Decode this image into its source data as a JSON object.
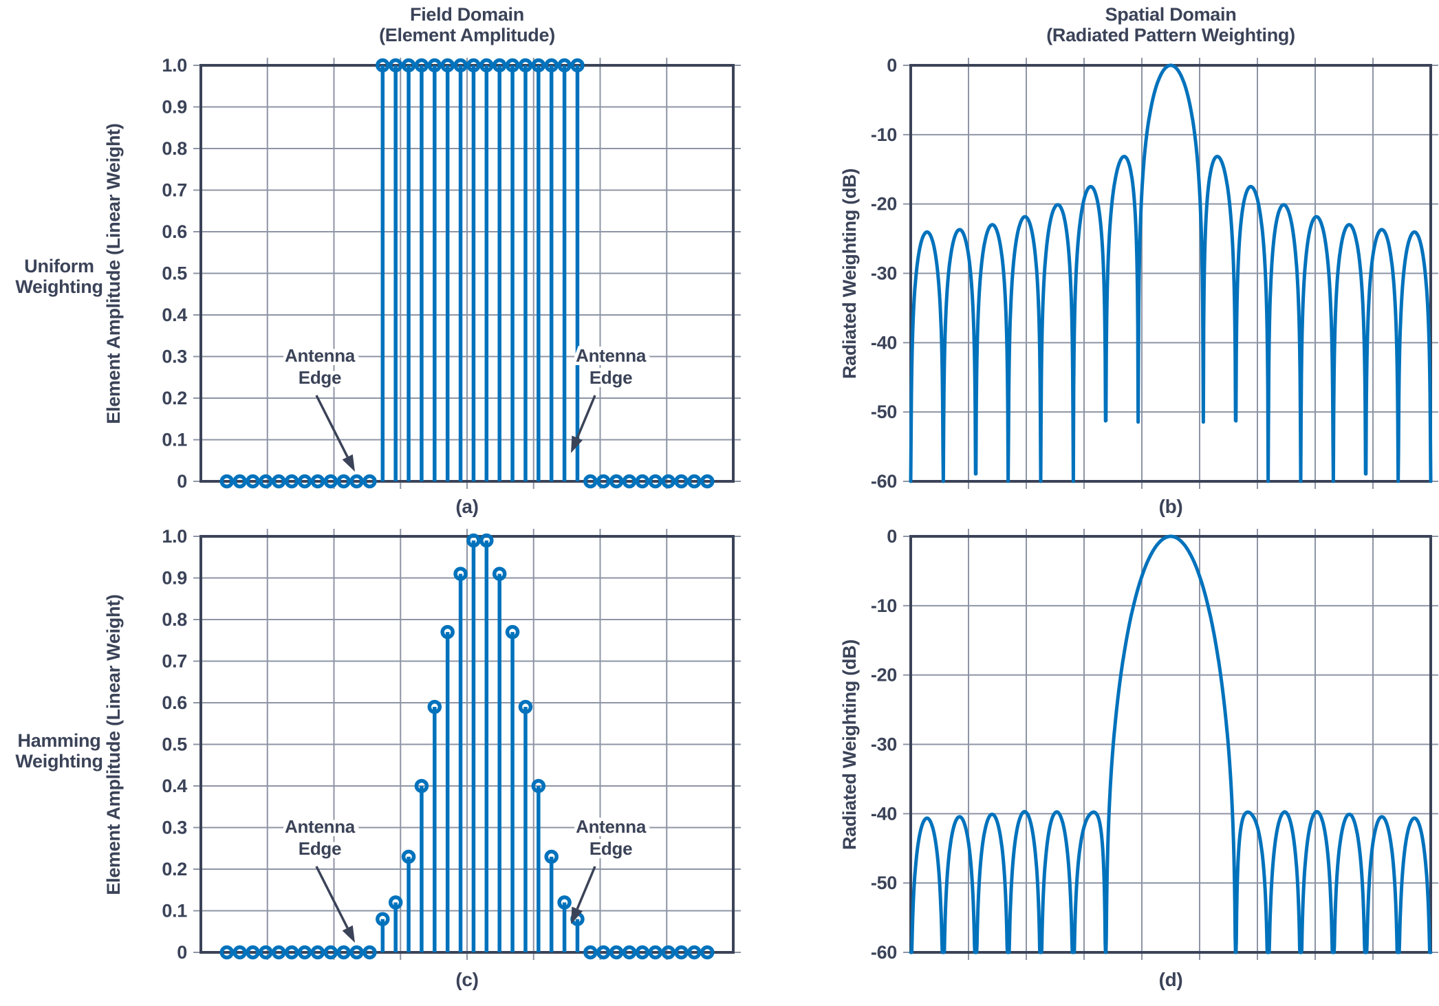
{
  "figure": {
    "bg": "#ffffff",
    "accent_blue": "#0072bc",
    "axis_color": "#3b4358",
    "grid_color": "#8d94a4",
    "row_labels": [
      {
        "line1": "Uniform",
        "line2": "Weighting"
      },
      {
        "line1": "Hamming",
        "line2": "Weighting"
      }
    ],
    "annotation": {
      "line1": "Antenna",
      "line2": "Edge"
    }
  },
  "chart_data": [
    {
      "id": "a",
      "type": "stem",
      "panel_label": "(a)",
      "title": "Field Domain (Element Amplitude)",
      "title_line1": "Field Domain",
      "title_line2": "(Element Amplitude)",
      "ylabel": "Element Amplitude (Linear Weight)",
      "xlabel": "",
      "ylim": [
        0,
        1
      ],
      "ytick_values": [
        0,
        0.1,
        0.2,
        0.3,
        0.4,
        0.5,
        0.6,
        0.7,
        0.8,
        0.9,
        1.0
      ],
      "ytick_labels": [
        "0",
        "0.1",
        "0.2",
        "0.3",
        "0.4",
        "0.5",
        "0.6",
        "0.7",
        "0.8",
        "0.9",
        "1.0"
      ],
      "grid_columns": 8,
      "grid": true,
      "x_range": [
        0,
        41
      ],
      "x_positions": [
        2,
        3,
        4,
        5,
        6,
        7,
        8,
        9,
        10,
        11,
        12,
        13,
        14,
        15,
        16,
        17,
        18,
        19,
        20,
        21,
        22,
        23,
        24,
        25,
        26,
        27,
        28,
        29,
        30,
        31,
        32,
        33,
        34,
        35,
        36,
        37,
        38,
        39
      ],
      "values": [
        0,
        0,
        0,
        0,
        0,
        0,
        0,
        0,
        0,
        0,
        0,
        0,
        1,
        1,
        1,
        1,
        1,
        1,
        1,
        1,
        1,
        1,
        1,
        1,
        1,
        1,
        1,
        1,
        0,
        0,
        0,
        0,
        0,
        0,
        0,
        0,
        0,
        0
      ],
      "n_zero_left": 12,
      "n_active_elements": 16,
      "n_zero_right": 10,
      "annotations": [
        {
          "side": "left",
          "tx": 0.2235,
          "ty1": 0.6975,
          "ty2": 0.7504,
          "ax": 0.217,
          "ay": 0.7934,
          "bx": 0.2894,
          "by": 0.9769
        },
        {
          "side": "right",
          "tx": 0.7701,
          "ty1": 0.6975,
          "ty2": 0.7504,
          "ax": 0.7403,
          "ay": 0.7934,
          "bx": 0.6951,
          "by": 0.932
        }
      ]
    },
    {
      "id": "b",
      "type": "line",
      "panel_label": "(b)",
      "title": "Spatial Domain (Radiated Pattern Weighting)",
      "title_line1": "Spatial Domain",
      "title_line2": "(Radiated Pattern Weighting)",
      "ylabel": "Radiated Weighting (dB)",
      "xlabel": "",
      "ylim": [
        -60,
        0
      ],
      "ytick_values": [
        0,
        -10,
        -20,
        -30,
        -40,
        -50,
        -60
      ],
      "ytick_labels": [
        "0",
        "-10",
        "-20",
        "-30",
        "-40",
        "-50",
        "-60"
      ],
      "grid_columns": 9,
      "grid": true,
      "x_range": [
        -1,
        1
      ],
      "num_elements": 16,
      "weighting": "uniform",
      "element_weights": [
        1,
        1,
        1,
        1,
        1,
        1,
        1,
        1,
        1,
        1,
        1,
        1,
        1,
        1,
        1,
        1
      ],
      "main_lobe_peak_db": 0,
      "sidelobes_per_side": 7,
      "sidelobe_peaks_db": [
        -13.3,
        -17.6,
        -20.1,
        -21.8,
        -23.0,
        -23.7,
        -24.0
      ]
    },
    {
      "id": "c",
      "type": "stem",
      "panel_label": "(c)",
      "title": "Field Domain (Element Amplitude)",
      "title_line1": "Field Domain",
      "title_line2": "(Element Amplitude)",
      "ylabel": "Element Amplitude (Linear Weight)",
      "xlabel": "",
      "ylim": [
        0,
        1
      ],
      "ytick_values": [
        0,
        0.1,
        0.2,
        0.3,
        0.4,
        0.5,
        0.6,
        0.7,
        0.8,
        0.9,
        1.0
      ],
      "ytick_labels": [
        "0",
        "0.1",
        "0.2",
        "0.3",
        "0.4",
        "0.5",
        "0.6",
        "0.7",
        "0.8",
        "0.9",
        "1.0"
      ],
      "grid_columns": 8,
      "grid": true,
      "x_range": [
        0,
        41
      ],
      "x_positions": [
        2,
        3,
        4,
        5,
        6,
        7,
        8,
        9,
        10,
        11,
        12,
        13,
        14,
        15,
        16,
        17,
        18,
        19,
        20,
        21,
        22,
        23,
        24,
        25,
        26,
        27,
        28,
        29,
        30,
        31,
        32,
        33,
        34,
        35,
        36,
        37,
        38,
        39
      ],
      "values": [
        0,
        0,
        0,
        0,
        0,
        0,
        0,
        0,
        0,
        0,
        0,
        0,
        0.08,
        0.12,
        0.23,
        0.4,
        0.59,
        0.77,
        0.91,
        0.99,
        0.99,
        0.91,
        0.77,
        0.59,
        0.4,
        0.23,
        0.12,
        0.08,
        0,
        0,
        0,
        0,
        0,
        0,
        0,
        0,
        0,
        0
      ],
      "n_zero_left": 12,
      "n_active_elements": 16,
      "n_zero_right": 10,
      "annotations": [
        {
          "side": "left",
          "tx": 0.2235,
          "ty1": 0.6975,
          "ty2": 0.7504,
          "ax": 0.217,
          "ay": 0.7934,
          "bx": 0.2894,
          "by": 0.9769
        },
        {
          "side": "right",
          "tx": 0.7701,
          "ty1": 0.6975,
          "ty2": 0.7504,
          "ax": 0.7403,
          "ay": 0.7934,
          "bx": 0.6951,
          "by": 0.932
        }
      ]
    },
    {
      "id": "d",
      "type": "line",
      "panel_label": "(d)",
      "title": "Spatial Domain (Radiated Pattern Weighting)",
      "title_line1": "Spatial Domain",
      "title_line2": "(Radiated Pattern Weighting)",
      "ylabel": "Radiated Weighting (dB)",
      "xlabel": "",
      "ylim": [
        -60,
        0
      ],
      "ytick_values": [
        0,
        -10,
        -20,
        -30,
        -40,
        -50,
        -60
      ],
      "ytick_labels": [
        "0",
        "-10",
        "-20",
        "-30",
        "-40",
        "-50",
        "-60"
      ],
      "grid_columns": 9,
      "grid": true,
      "x_range": [
        -1,
        1
      ],
      "num_elements": 16,
      "weighting": "hamming",
      "element_weights": [
        0.08,
        0.115,
        0.2147,
        0.364,
        0.54,
        0.716,
        0.8653,
        0.965,
        1.0,
        0.965,
        0.8653,
        0.716,
        0.54,
        0.364,
        0.2147,
        0.115
      ],
      "main_lobe_peak_db": 0,
      "sidelobes_per_side": 5,
      "sidelobe_peaks_db": [
        -40.2,
        -40.0,
        -39.7,
        -39.5,
        -39.9
      ]
    }
  ]
}
